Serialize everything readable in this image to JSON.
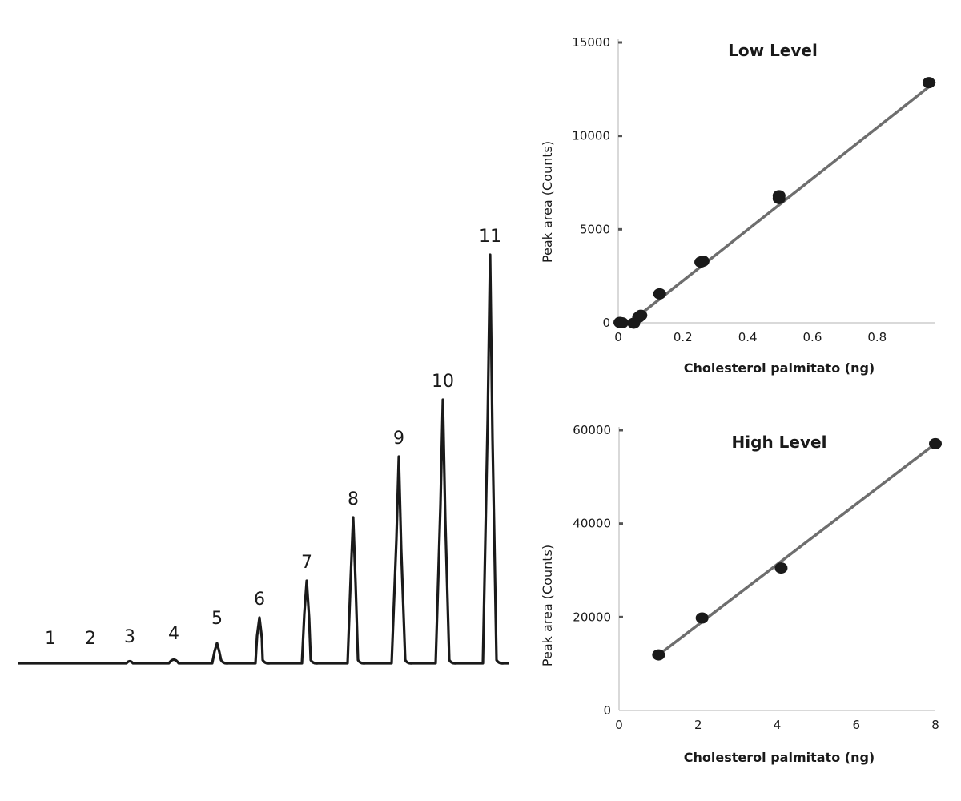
{
  "chart_data": [
    {
      "type": "line",
      "name": "chromatogram",
      "peaks": [
        {
          "label": "1",
          "height": 0
        },
        {
          "label": "2",
          "height": 0
        },
        {
          "label": "3",
          "height": 2
        },
        {
          "label": "4",
          "height": 6
        },
        {
          "label": "5",
          "height": 25
        },
        {
          "label": "6",
          "height": 57
        },
        {
          "label": "7",
          "height": 103
        },
        {
          "label": "8",
          "height": 182
        },
        {
          "label": "9",
          "height": 258
        },
        {
          "label": "10",
          "height": 329
        },
        {
          "label": "11",
          "height": 510
        }
      ]
    },
    {
      "type": "scatter",
      "name": "low-level",
      "title": "Low Level",
      "xlabel": "Cholesterol palmitato (ng)",
      "ylabel": "Peak area (Counts)",
      "xlim": [
        0,
        0.98
      ],
      "ylim": [
        0,
        15000
      ],
      "xticks": [
        0,
        0.2,
        0.4,
        0.6,
        0.8
      ],
      "xtick_labels": [
        "0",
        "0.2",
        "0.4",
        "0.6",
        "0.8"
      ],
      "yticks": [
        0,
        5000,
        10000,
        15000
      ],
      "ytick_labels": [
        "0",
        "5000",
        "10000",
        "15000"
      ],
      "points": [
        {
          "x": 0.005,
          "y": 20
        },
        {
          "x": 0.012,
          "y": 0
        },
        {
          "x": 0.048,
          "y": -20
        },
        {
          "x": 0.063,
          "y": 300
        },
        {
          "x": 0.07,
          "y": 400
        },
        {
          "x": 0.128,
          "y": 1550
        },
        {
          "x": 0.255,
          "y": 3250
        },
        {
          "x": 0.262,
          "y": 3300
        },
        {
          "x": 0.497,
          "y": 6650
        },
        {
          "x": 0.497,
          "y": 6800
        },
        {
          "x": 0.96,
          "y": 12850
        }
      ],
      "fit": [
        [
          0.035,
          0
        ],
        [
          0.98,
          12900
        ]
      ]
    },
    {
      "type": "scatter",
      "name": "high-level",
      "title": "High Level",
      "xlabel": "Cholesterol palmitato (ng)",
      "ylabel": "Peak area (Counts)",
      "xlim": [
        0,
        8
      ],
      "ylim": [
        0,
        60000
      ],
      "xticks": [
        0,
        2,
        4,
        6,
        8
      ],
      "xtick_labels": [
        "0",
        "2",
        "4",
        "6",
        "8"
      ],
      "yticks": [
        0,
        20000,
        40000,
        60000
      ],
      "ytick_labels": [
        "0",
        "20000",
        "40000",
        "60000"
      ],
      "points": [
        {
          "x": 1.0,
          "y": 11900
        },
        {
          "x": 2.1,
          "y": 19800
        },
        {
          "x": 4.1,
          "y": 30500
        },
        {
          "x": 8.0,
          "y": 57100
        }
      ],
      "fit": [
        [
          1.0,
          11900
        ],
        [
          8.0,
          57100
        ]
      ]
    }
  ]
}
